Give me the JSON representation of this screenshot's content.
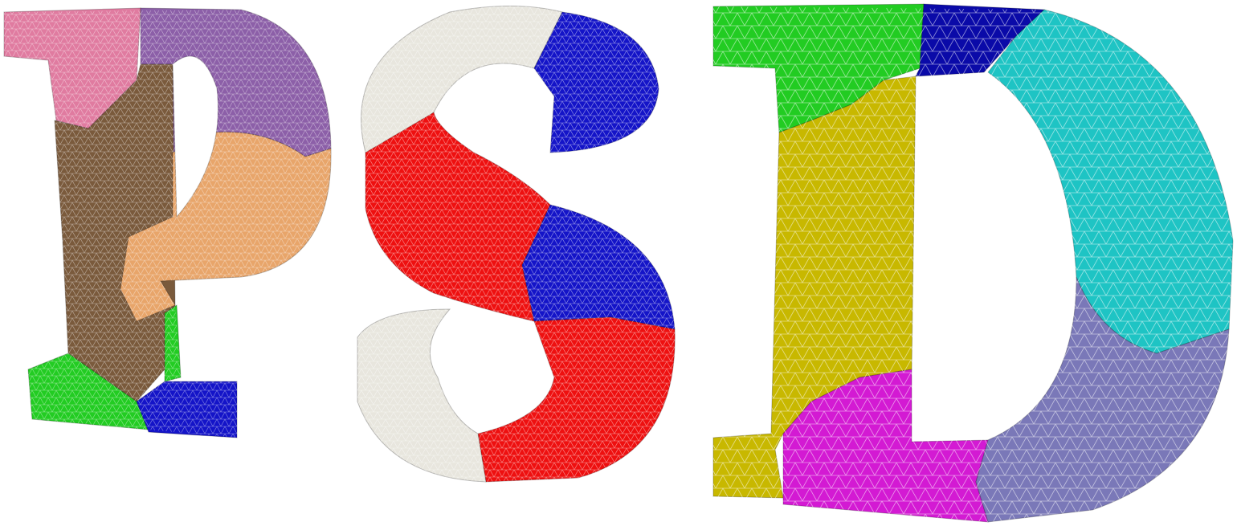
{
  "image": {
    "description_free": true,
    "letters": [
      {
        "glyph": "P",
        "partition_colors": [
          "#e07ba0",
          "#8c5fa8",
          "#7a5a3c",
          "#e8a56a",
          "#22cc22",
          "#1414c8"
        ]
      },
      {
        "glyph": "S",
        "partition_colors": [
          "#e8e6de",
          "#1414c8",
          "#ee1010",
          "#1414c8",
          "#ee1010",
          "#e8e6de"
        ]
      },
      {
        "glyph": "D",
        "partition_colors": [
          "#22cc22",
          "#0a0aa8",
          "#1ec4c4",
          "#c8b800",
          "#d31ad3",
          "#7a78b8"
        ]
      }
    ],
    "mesh_line_color": "#ffffff",
    "background": "#ffffff"
  }
}
